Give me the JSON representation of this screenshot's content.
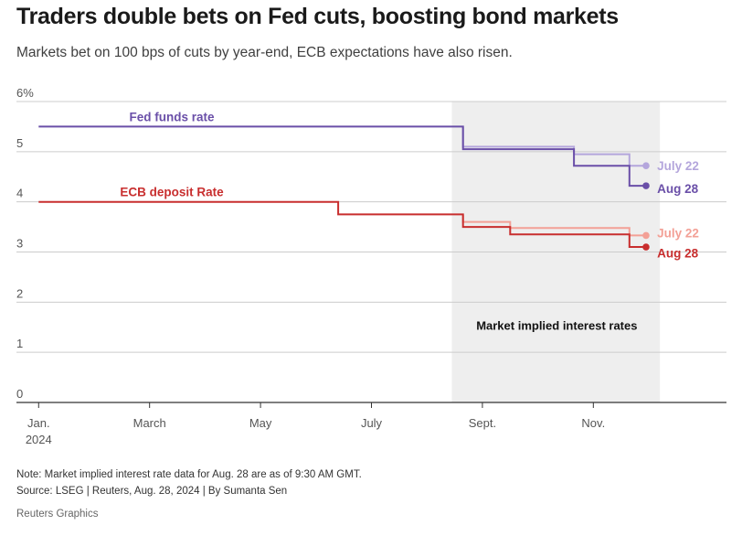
{
  "header": {
    "title": "Traders double bets on Fed cuts, boosting bond markets",
    "subtitle": "Markets bet on 100 bps of cuts by year-end, ECB expectations have also risen."
  },
  "footer": {
    "note": "Note: Market implied interest rate data for Aug. 28 are as of 9:30 AM GMT.",
    "source": "Source: LSEG | Reuters, Aug. 28, 2024 | By Sumanta Sen",
    "brand": "Reuters Graphics"
  },
  "colors": {
    "fed_dark": "#6a4fa8",
    "fed_light": "#b4a6dc",
    "ecb_dark": "#c82e2e",
    "ecb_light": "#f3a096",
    "grid": "#cccccc",
    "axis": "#333333",
    "shade": "#eeeeee"
  },
  "chart_data": {
    "type": "line",
    "step": true,
    "x_unit": "months since Jan. 1, 2024",
    "xlim": [
      -0.4,
      12.4
    ],
    "ylim": [
      0,
      6
    ],
    "y_ticks": [
      0,
      1,
      2,
      3,
      4,
      5,
      6
    ],
    "y_tick_labels": [
      "0",
      "1",
      "2",
      "3",
      "4",
      "5",
      "6%"
    ],
    "x_ticks": [
      {
        "x": 0,
        "label": "Jan.",
        "sublabel": "2024"
      },
      {
        "x": 2,
        "label": "March",
        "sublabel": ""
      },
      {
        "x": 4,
        "label": "May",
        "sublabel": ""
      },
      {
        "x": 6,
        "label": "July",
        "sublabel": ""
      },
      {
        "x": 8,
        "label": "Sept.",
        "sublabel": ""
      },
      {
        "x": 10,
        "label": "Nov.",
        "sublabel": ""
      }
    ],
    "shaded_region": {
      "x": [
        7.45,
        11.2
      ],
      "label": "Market implied interest rates"
    },
    "series": [
      {
        "name": "Fed funds rate",
        "label": "Fed funds rate",
        "color_key": "fed_dark",
        "width": 2,
        "points": [
          [
            0,
            5.5
          ],
          [
            7.65,
            5.5
          ],
          [
            7.65,
            5.05
          ],
          [
            9.65,
            5.05
          ],
          [
            9.65,
            4.72
          ],
          [
            10.65,
            4.72
          ],
          [
            10.65,
            4.32
          ],
          [
            10.95,
            4.32
          ]
        ]
      },
      {
        "name": "Fed funds rate July 22",
        "label": "July 22",
        "color_key": "fed_light",
        "width": 2,
        "points": [
          [
            7.65,
            5.5
          ],
          [
            7.65,
            5.1
          ],
          [
            9.65,
            5.1
          ],
          [
            9.65,
            4.95
          ],
          [
            10.65,
            4.95
          ],
          [
            10.65,
            4.72
          ],
          [
            10.95,
            4.72
          ]
        ]
      },
      {
        "name": "Fed funds rate Aug 28",
        "label": "Aug 28",
        "color_key": "fed_dark",
        "width": 2,
        "points": []
      },
      {
        "name": "ECB deposit Rate",
        "label": "ECB deposit Rate",
        "color_key": "ecb_dark",
        "width": 2,
        "points": [
          [
            0,
            4.0
          ],
          [
            5.4,
            4.0
          ],
          [
            5.4,
            3.75
          ],
          [
            7.65,
            3.75
          ],
          [
            7.65,
            3.5
          ],
          [
            8.5,
            3.5
          ],
          [
            8.5,
            3.35
          ],
          [
            10.65,
            3.35
          ],
          [
            10.65,
            3.1
          ],
          [
            10.95,
            3.1
          ]
        ]
      },
      {
        "name": "ECB deposit Rate July 22",
        "label": "July 22",
        "color_key": "ecb_light",
        "width": 2,
        "points": [
          [
            7.65,
            3.75
          ],
          [
            7.65,
            3.6
          ],
          [
            8.5,
            3.6
          ],
          [
            8.5,
            3.48
          ],
          [
            10.65,
            3.48
          ],
          [
            10.65,
            3.33
          ],
          [
            10.95,
            3.33
          ]
        ]
      },
      {
        "name": "ECB deposit Rate Aug 28",
        "label": "Aug 28",
        "color_key": "ecb_dark",
        "width": 2,
        "points": []
      }
    ],
    "end_dots": [
      {
        "x": 10.95,
        "y": 4.72,
        "color_key": "fed_light"
      },
      {
        "x": 10.95,
        "y": 4.32,
        "color_key": "fed_dark"
      },
      {
        "x": 10.95,
        "y": 3.33,
        "color_key": "ecb_light"
      },
      {
        "x": 10.95,
        "y": 3.1,
        "color_key": "ecb_dark"
      }
    ],
    "annotations": [
      {
        "text": "Fed funds rate",
        "x": 2.4,
        "y": 5.7,
        "anchor": "middle",
        "color_key": "fed_dark"
      },
      {
        "text": "ECB deposit Rate",
        "x": 2.4,
        "y": 4.2,
        "anchor": "middle",
        "color_key": "ecb_dark"
      },
      {
        "text": "July 22",
        "x": 11.15,
        "y": 4.72,
        "anchor": "start",
        "color_key": "fed_light"
      },
      {
        "text": "Aug 28",
        "x": 11.15,
        "y": 4.27,
        "anchor": "start",
        "color_key": "fed_dark"
      },
      {
        "text": "July 22",
        "x": 11.15,
        "y": 3.38,
        "anchor": "start",
        "color_key": "ecb_light"
      },
      {
        "text": "Aug 28",
        "x": 11.15,
        "y": 2.98,
        "anchor": "start",
        "color_key": "ecb_dark"
      }
    ]
  }
}
